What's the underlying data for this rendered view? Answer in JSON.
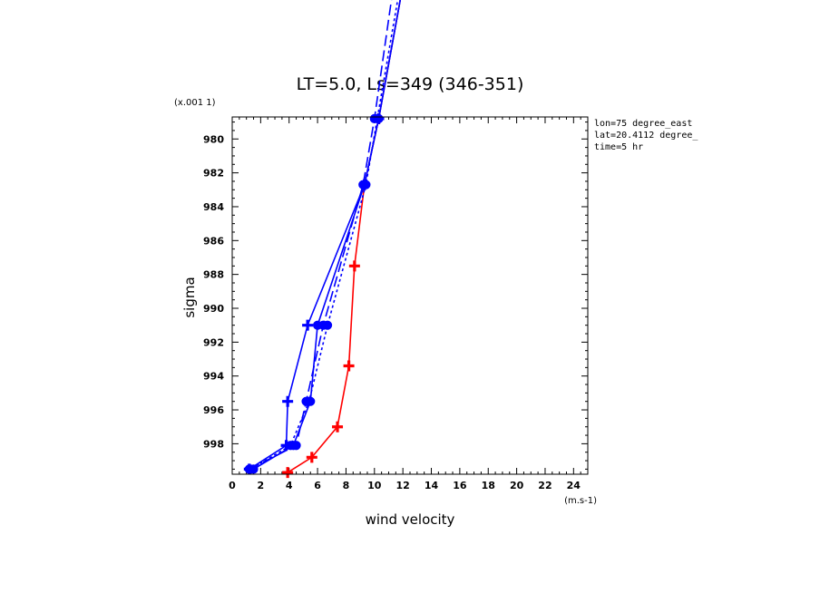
{
  "chart_data": {
    "type": "line",
    "title": "LT=5.0, Ls=349 (346-351)",
    "xlabel": "wind velocity",
    "ylabel": "sigma",
    "x_units": "(m.s-1)",
    "y_units": "(x.001 1)",
    "xlim": [
      0,
      25
    ],
    "ylim": [
      999.8,
      978.7
    ],
    "x_ticks": [
      0,
      2,
      4,
      6,
      8,
      10,
      12,
      14,
      16,
      18,
      20,
      22,
      24
    ],
    "y_ticks": [
      980,
      982,
      984,
      986,
      988,
      990,
      992,
      994,
      996,
      998
    ],
    "annotations": [
      "lon=75 degree_east",
      "lat=20.4112 degree_",
      "time=5 hr"
    ],
    "series": [
      {
        "color": "#ff0000",
        "style": "solid",
        "marker": "plus",
        "points": [
          [
            3.9,
            999.7
          ],
          [
            5.6,
            998.8
          ],
          [
            7.4,
            997.0
          ],
          [
            8.2,
            993.4
          ],
          [
            8.6,
            987.5
          ],
          [
            9.3,
            982.7
          ],
          [
            10.3,
            978.8
          ],
          [
            12.2,
            970.0
          ]
        ]
      },
      {
        "color": "#0000ff",
        "style": "solid",
        "marker": "plus",
        "points": [
          [
            1.2,
            999.5
          ],
          [
            3.8,
            998.1
          ],
          [
            3.9,
            995.5
          ],
          [
            5.3,
            991.0
          ],
          [
            9.3,
            982.7
          ],
          [
            10.3,
            978.8
          ],
          [
            12.2,
            970.0
          ]
        ]
      },
      {
        "color": "#0000ff",
        "style": "solid",
        "marker": "circle",
        "points": [
          [
            1.5,
            999.5
          ],
          [
            4.3,
            998.1
          ],
          [
            5.5,
            995.5
          ],
          [
            6.0,
            991.0
          ],
          [
            9.3,
            982.7
          ],
          [
            10.3,
            978.8
          ],
          [
            12.2,
            970.0
          ]
        ]
      },
      {
        "color": "#0000ff",
        "style": "short-dash",
        "marker": "circle",
        "points": [
          [
            1.3,
            999.5
          ],
          [
            4.1,
            998.1
          ],
          [
            5.4,
            995.5
          ],
          [
            6.7,
            991.0
          ],
          [
            9.4,
            982.7
          ],
          [
            10.2,
            978.8
          ],
          [
            12.0,
            970.0
          ]
        ]
      },
      {
        "color": "#0000ff",
        "style": "long-dash",
        "marker": "circle",
        "points": [
          [
            1.2,
            999.5
          ],
          [
            4.5,
            998.1
          ],
          [
            5.2,
            995.5
          ],
          [
            6.4,
            991.0
          ],
          [
            9.2,
            982.7
          ],
          [
            10.0,
            978.8
          ],
          [
            11.5,
            970.0
          ]
        ]
      }
    ]
  }
}
